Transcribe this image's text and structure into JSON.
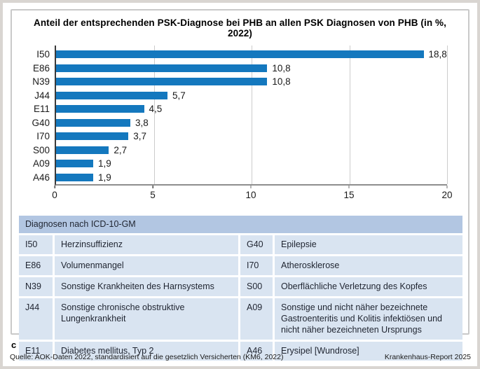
{
  "figure": {
    "panel_label": "c",
    "source": "Quelle: AOK-Daten 2022, standardisiert auf die gesetzlich Versicherten (KM6, 2022)",
    "report": "Krankenhaus-Report 2025"
  },
  "chart_data": {
    "type": "bar",
    "orientation": "horizontal",
    "title": "Anteil der entsprechenden PSK-Diagnose bei PHB an allen PSK Diagnosen von PHB (in %, 2022)",
    "categories": [
      "I50",
      "E86",
      "N39",
      "J44",
      "E11",
      "G40",
      "I70",
      "S00",
      "A09",
      "A46"
    ],
    "values": [
      18.8,
      10.8,
      10.8,
      5.7,
      4.5,
      3.8,
      3.7,
      2.7,
      1.9,
      1.9
    ],
    "value_labels": [
      "18,8",
      "10,8",
      "10,8",
      "5,7",
      "4,5",
      "3,8",
      "3,7",
      "2,7",
      "1,9",
      "1,9"
    ],
    "xlabel": "",
    "ylabel": "",
    "xlim": [
      0,
      20
    ],
    "xticks": [
      0,
      5,
      10,
      15,
      20
    ],
    "grid": "vertical-gridlines-at-ticks",
    "legend": "none",
    "bar_color": "#1478be"
  },
  "table": {
    "header": "Diagnosen nach ICD-10-GM",
    "colors": {
      "header_bg": "#b2c6e2",
      "row_bg": "#d9e4f1",
      "text": "#1f2430"
    },
    "rows": [
      {
        "code_left": "I50",
        "desc_left": "Herzinsuffizienz",
        "code_right": "G40",
        "desc_right": "Epilepsie"
      },
      {
        "code_left": "E86",
        "desc_left": "Volumenmangel",
        "code_right": "I70",
        "desc_right": "Atherosklerose"
      },
      {
        "code_left": "N39",
        "desc_left": "Sonstige Krankheiten des Harnsystems",
        "code_right": "S00",
        "desc_right": "Oberflächliche Verletzung des Kopfes"
      },
      {
        "code_left": "J44",
        "desc_left": "Sonstige chronische obstruktive Lungenkrankheit",
        "code_right": "A09",
        "desc_right": "Sonstige und nicht näher bezeichnete Gastroenteritis und Kolitis infektiösen und nicht näher bezeichneten Ursprungs"
      },
      {
        "code_left": "E11",
        "desc_left": "Diabetes mellitus, Typ 2",
        "code_right": "A46",
        "desc_right": "Erysipel [Wundrose]"
      }
    ]
  }
}
